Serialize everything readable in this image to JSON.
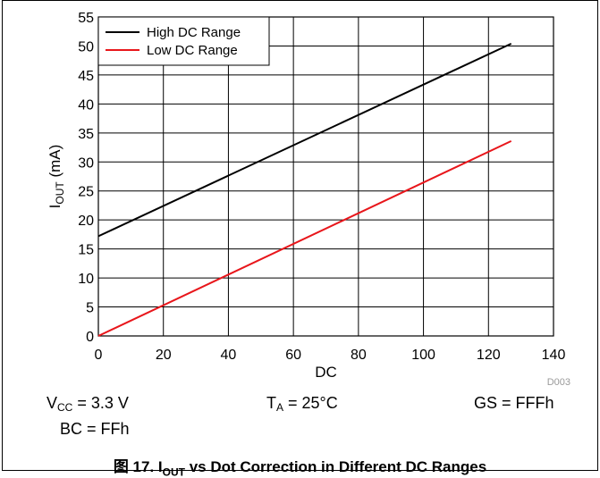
{
  "chart_data": {
    "type": "line",
    "xlabel": "DC",
    "ylabel": "I",
    "ylabel_sub": "OUT",
    "ylabel_unit": " (mA)",
    "xlim": [
      0,
      140
    ],
    "ylim": [
      0,
      55
    ],
    "xticks": [
      "0",
      "20",
      "40",
      "60",
      "80",
      "100",
      "120",
      "140"
    ],
    "yticks": [
      "0",
      "5",
      "10",
      "15",
      "20",
      "25",
      "30",
      "35",
      "40",
      "45",
      "50",
      "55"
    ],
    "grid": true,
    "legend_position": "top-left",
    "series": [
      {
        "name": "High DC Range",
        "color": "#000000",
        "x": [
          0,
          127
        ],
        "y": [
          17.2,
          50.4
        ]
      },
      {
        "name": "Low DC Range",
        "color": "#e8161b",
        "x": [
          0,
          127
        ],
        "y": [
          0.0,
          33.6
        ]
      }
    ],
    "watermark": "D003"
  },
  "conditions": {
    "vcc": {
      "pre": "V",
      "sub": "CC",
      "post": " = 3.3 V"
    },
    "ta": {
      "pre": "T",
      "sub": "A",
      "post": " = 25°C"
    },
    "gs": "GS = FFFh",
    "bc": "BC = FFh"
  },
  "caption": {
    "pre": "图 17. I",
    "sub": "OUT",
    "post": " vs Dot Correction in Different DC Ranges"
  }
}
